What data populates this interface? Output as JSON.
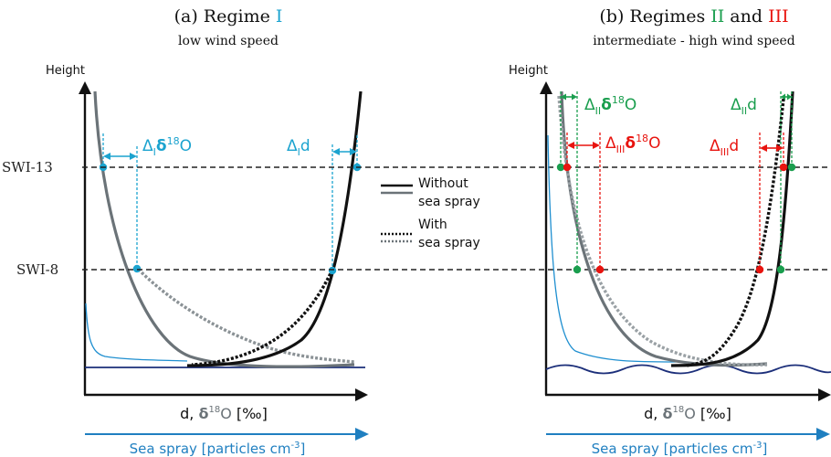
{
  "panel_a": {
    "title_prefix": "(a) Regime ",
    "title_regime": "I",
    "subtitle": "low wind speed",
    "y_label": "Height",
    "x_label_d": "d, ",
    "x_label_delta": "δ",
    "x_label_sup": "18",
    "x_label_o": "O",
    "x_label_unit": " [‰]",
    "spray_label": "Sea spray [particles cm",
    "spray_sup": "-3",
    "spray_close": "]",
    "ann_delta_o_sub": "I",
    "ann_delta_o_sup": "18",
    "ann_delta_d_sub": "I",
    "ann_delta_d_text": "d"
  },
  "panel_b": {
    "title_prefix": "(b) Regimes ",
    "title_regime_2": "II",
    "title_and": " and ",
    "title_regime_3": "III",
    "subtitle": "intermediate - high wind speed",
    "y_label": "Height",
    "x_label_d": "d, ",
    "x_label_delta": "δ",
    "x_label_sup": "18",
    "x_label_o": "O",
    "x_label_unit": " [‰]",
    "spray_label": "Sea spray [particles cm",
    "spray_sup": "-3",
    "spray_close": "]",
    "ann_ii_o_sub": "II",
    "ann_ii_o_sup": "18",
    "ann_ii_d_sub": "II",
    "ann_ii_d_text": "d",
    "ann_iii_o_sub": "III",
    "ann_iii_o_sup": "18",
    "ann_iii_d_sub": "III",
    "ann_iii_d_text": "d"
  },
  "levels": {
    "upper": "SWI-13",
    "lower": "SWI-8"
  },
  "legend": {
    "without_line1": "Without",
    "without_line2": "sea spray",
    "with_line1": "With",
    "with_line2": "sea spray"
  },
  "colors": {
    "regime_1": "#1ba3cf",
    "regime_2": "#1a9e4e",
    "regime_3": "#e8140f",
    "d_curve": "#111111",
    "delta18o_curve": "#6b7378",
    "spray_arrow": "#1f7fc0",
    "sea_surface": "#1c2f7a"
  }
}
